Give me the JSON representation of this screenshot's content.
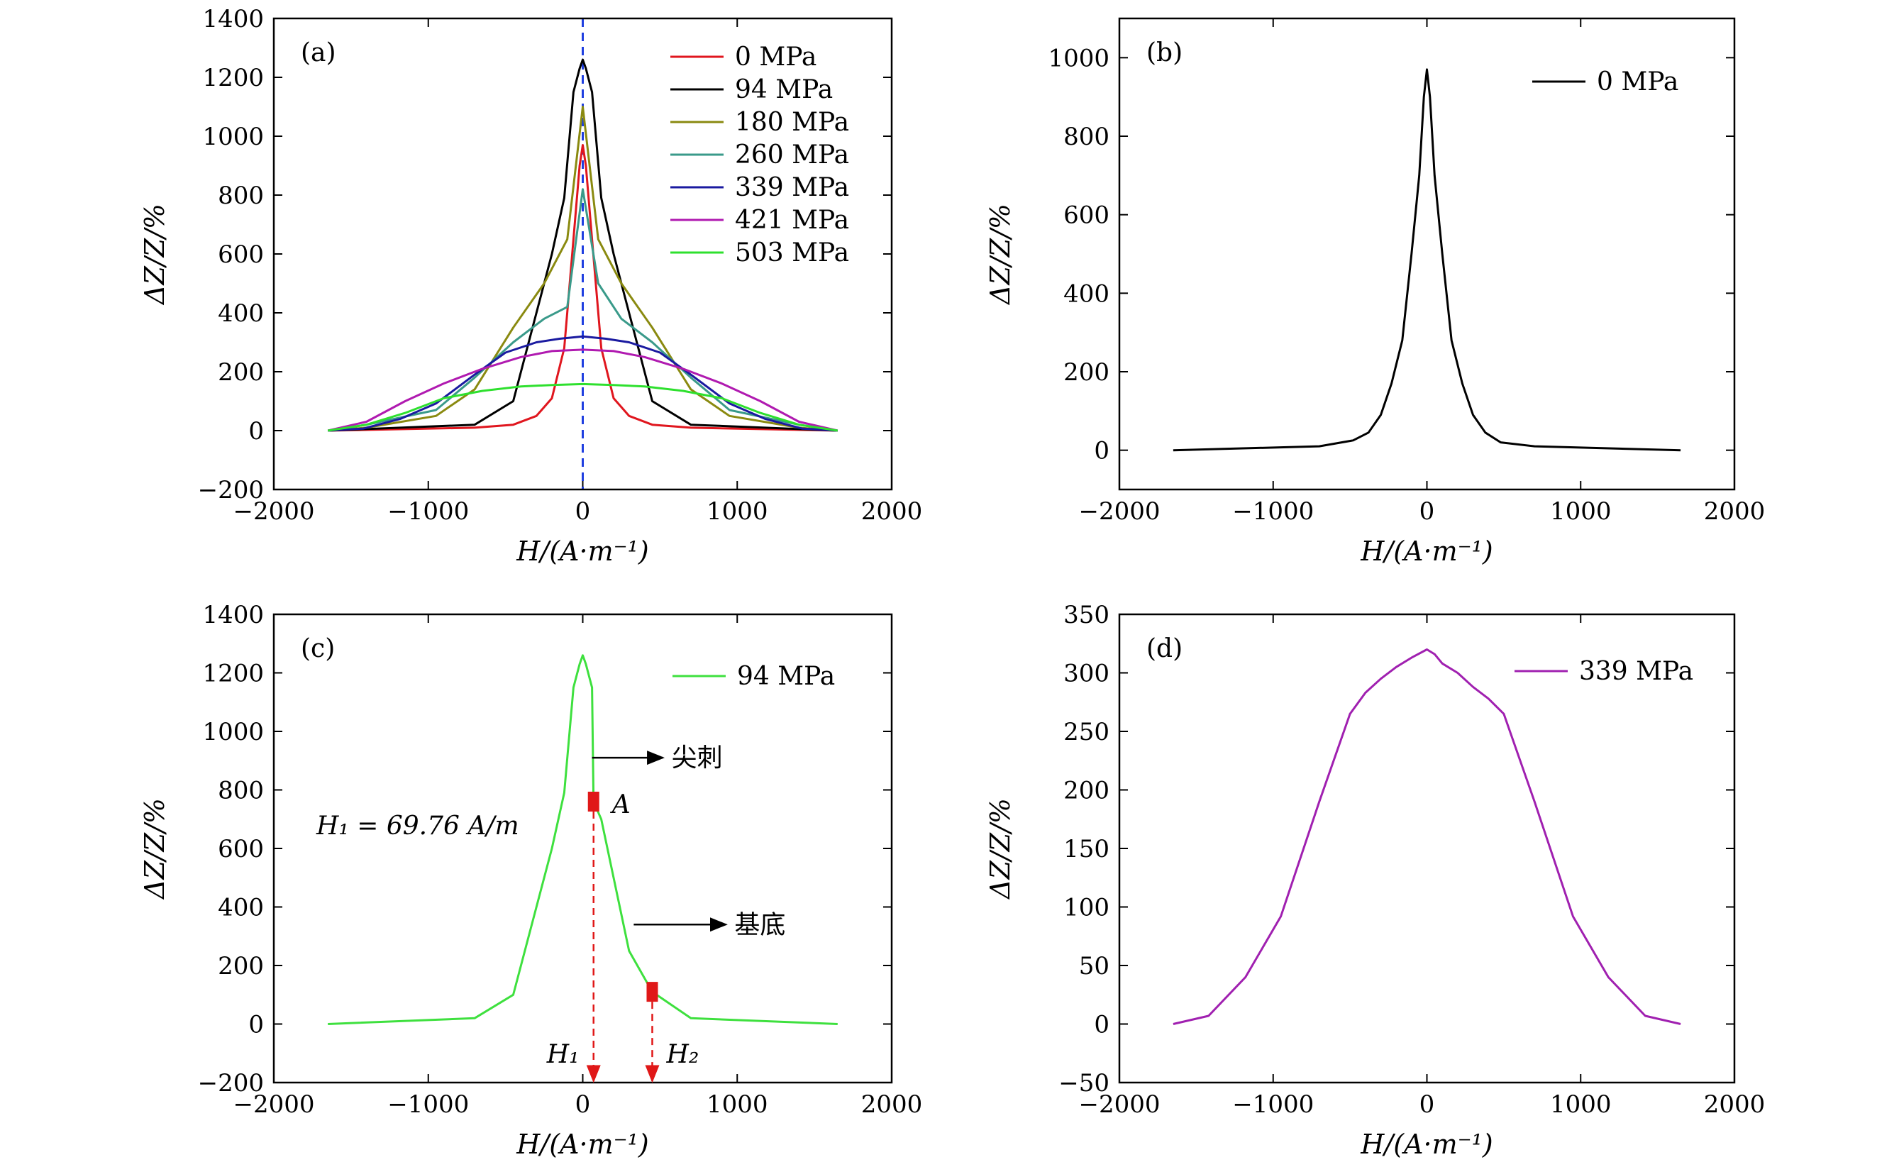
{
  "chart_data": [
    {
      "type": "line",
      "panel_label": "(a)",
      "xlabel": "H/(A·m⁻¹)",
      "ylabel": "ΔZ/Z/%",
      "xlim": [
        -2000,
        2000
      ],
      "ylim": [
        -200,
        1400
      ],
      "xticks": [
        -2000,
        -1000,
        0,
        1000,
        2000
      ],
      "xtick_labels": [
        "−2000",
        "−1000",
        "0",
        "1000",
        "2000"
      ],
      "yticks": [
        -200,
        0,
        200,
        400,
        600,
        800,
        1000,
        1200,
        1400
      ],
      "ytick_labels": [
        "−200",
        "0",
        "200",
        "400",
        "600",
        "800",
        "1000",
        "1200",
        "1400"
      ],
      "legend_position": "top-right",
      "reference_line": {
        "x": 0,
        "style": "dashed",
        "color": "#1f3fe0"
      },
      "series": [
        {
          "name": "0 MPa",
          "color": "#e0161e",
          "x": [
            -1650,
            -700,
            -450,
            -300,
            -200,
            -120,
            -60,
            -20,
            0,
            20,
            60,
            120,
            200,
            300,
            450,
            700,
            1650
          ],
          "y": [
            0,
            10,
            20,
            50,
            110,
            280,
            650,
            900,
            970,
            900,
            650,
            280,
            110,
            50,
            20,
            10,
            0
          ]
        },
        {
          "name": "94 MPa",
          "color": "#000000",
          "x": [
            -1650,
            -700,
            -450,
            -300,
            -200,
            -120,
            -60,
            -20,
            0,
            20,
            60,
            120,
            200,
            300,
            450,
            700,
            1650
          ],
          "y": [
            0,
            20,
            100,
            400,
            600,
            790,
            1150,
            1230,
            1260,
            1230,
            1150,
            790,
            600,
            400,
            100,
            20,
            0
          ]
        },
        {
          "name": "180 MPa",
          "color": "#8a8a10",
          "x": [
            -1650,
            -1400,
            -950,
            -700,
            -450,
            -250,
            -100,
            0,
            100,
            250,
            450,
            700,
            950,
            1400,
            1650
          ],
          "y": [
            0,
            10,
            50,
            140,
            350,
            500,
            650,
            1100,
            650,
            500,
            350,
            140,
            50,
            10,
            0
          ]
        },
        {
          "name": "260 MPa",
          "color": "#3a9a8a",
          "x": [
            -1650,
            -1400,
            -950,
            -700,
            -450,
            -250,
            -100,
            0,
            100,
            250,
            450,
            700,
            950,
            1400,
            1650
          ],
          "y": [
            0,
            20,
            70,
            180,
            300,
            380,
            420,
            820,
            500,
            380,
            300,
            180,
            70,
            20,
            0
          ]
        },
        {
          "name": "339 MPa",
          "color": "#1a1aa0",
          "x": [
            -1650,
            -1420,
            -1180,
            -950,
            -700,
            -500,
            -300,
            -150,
            0,
            150,
            300,
            500,
            700,
            950,
            1180,
            1420,
            1650
          ],
          "y": [
            0,
            7,
            40,
            92,
            190,
            265,
            300,
            312,
            320,
            312,
            300,
            265,
            190,
            92,
            40,
            7,
            0
          ]
        },
        {
          "name": "421 MPa",
          "color": "#b01ab0",
          "x": [
            -1650,
            -1400,
            -1150,
            -900,
            -650,
            -400,
            -200,
            0,
            200,
            400,
            650,
            900,
            1150,
            1400,
            1650
          ],
          "y": [
            0,
            30,
            100,
            160,
            210,
            250,
            270,
            275,
            270,
            250,
            210,
            160,
            100,
            30,
            0
          ]
        },
        {
          "name": "503 MPa",
          "color": "#2ee02e",
          "x": [
            -1650,
            -1400,
            -1150,
            -900,
            -650,
            -400,
            -200,
            0,
            200,
            400,
            650,
            900,
            1150,
            1400,
            1650
          ],
          "y": [
            0,
            20,
            60,
            110,
            135,
            150,
            155,
            158,
            155,
            150,
            135,
            110,
            60,
            20,
            0
          ]
        }
      ]
    },
    {
      "type": "line",
      "panel_label": "(b)",
      "xlabel": "H/(A·m⁻¹)",
      "ylabel": "ΔZ/Z/%",
      "xlim": [
        -2000,
        2000
      ],
      "ylim": [
        -100,
        1100
      ],
      "xticks": [
        -2000,
        -1000,
        0,
        1000,
        2000
      ],
      "xtick_labels": [
        "−2000",
        "−1000",
        "0",
        "1000",
        "2000"
      ],
      "yticks": [
        0,
        200,
        400,
        600,
        800,
        1000
      ],
      "ytick_labels": [
        "0",
        "200",
        "400",
        "600",
        "800",
        "1000"
      ],
      "legend_position": "top-right",
      "series": [
        {
          "name": "0 MPa",
          "color": "#000000",
          "x": [
            -1650,
            -700,
            -480,
            -380,
            -300,
            -230,
            -160,
            -100,
            -50,
            -20,
            0,
            20,
            50,
            100,
            160,
            230,
            300,
            380,
            480,
            700,
            1650
          ],
          "y": [
            0,
            10,
            25,
            45,
            90,
            170,
            280,
            500,
            700,
            900,
            970,
            900,
            700,
            500,
            280,
            170,
            90,
            45,
            20,
            10,
            0
          ]
        }
      ]
    },
    {
      "type": "line",
      "panel_label": "(c)",
      "xlabel": "H/(A·m⁻¹)",
      "ylabel": "ΔZ/Z/%",
      "xlim": [
        -2000,
        2000
      ],
      "ylim": [
        -200,
        1400
      ],
      "xticks": [
        -2000,
        -1000,
        0,
        1000,
        2000
      ],
      "xtick_labels": [
        "−2000",
        "−1000",
        "0",
        "1000",
        "2000"
      ],
      "yticks": [
        -200,
        0,
        200,
        400,
        600,
        800,
        1000,
        1200,
        1400
      ],
      "ytick_labels": [
        "−200",
        "0",
        "200",
        "400",
        "600",
        "800",
        "1000",
        "1200",
        "1400"
      ],
      "legend_position": "top-right",
      "series": [
        {
          "name": "94 MPa",
          "color": "#3ee03e",
          "x": [
            -1650,
            -700,
            -450,
            -300,
            -200,
            -120,
            -60,
            -20,
            0,
            20,
            60,
            70,
            120,
            200,
            300,
            450,
            700,
            1650
          ],
          "y": [
            0,
            20,
            100,
            400,
            600,
            790,
            1150,
            1230,
            1260,
            1230,
            1150,
            760,
            700,
            500,
            250,
            110,
            20,
            0
          ]
        }
      ],
      "annotations": {
        "spike_label": "尖刺",
        "base_label": "基底",
        "point_a_label": "A",
        "h1_equation": "H₁ = 69.76 A/m",
        "h1_marker": "H₁",
        "h2_marker": "H₂",
        "point_a": {
          "x": 70,
          "y": 760
        },
        "point_b": {
          "x": 450,
          "y": 110
        },
        "spike_arrow_from": {
          "x": 60,
          "y": 910
        },
        "base_arrow_from": {
          "x": 330,
          "y": 340
        }
      }
    },
    {
      "type": "line",
      "panel_label": "(d)",
      "xlabel": "H/(A·m⁻¹)",
      "ylabel": "ΔZ/Z/%",
      "xlim": [
        -2000,
        2000
      ],
      "ylim": [
        -50,
        350
      ],
      "xticks": [
        -2000,
        -1000,
        0,
        1000,
        2000
      ],
      "xtick_labels": [
        "−2000",
        "−1000",
        "0",
        "1000",
        "2000"
      ],
      "yticks": [
        -50,
        0,
        50,
        100,
        150,
        200,
        250,
        300,
        350
      ],
      "ytick_labels": [
        "−50",
        "0",
        "50",
        "100",
        "150",
        "200",
        "250",
        "300",
        "350"
      ],
      "legend_position": "top-right",
      "series": [
        {
          "name": "339 MPa",
          "color": "#a020b0",
          "x": [
            -1650,
            -1420,
            -1180,
            -950,
            -700,
            -500,
            -400,
            -300,
            -200,
            -100,
            0,
            50,
            100,
            200,
            300,
            400,
            500,
            700,
            950,
            1180,
            1420,
            1650
          ],
          "y": [
            0,
            7,
            40,
            92,
            190,
            265,
            283,
            295,
            305,
            313,
            320,
            316,
            308,
            300,
            288,
            278,
            265,
            190,
            92,
            40,
            7,
            0
          ]
        }
      ]
    }
  ]
}
